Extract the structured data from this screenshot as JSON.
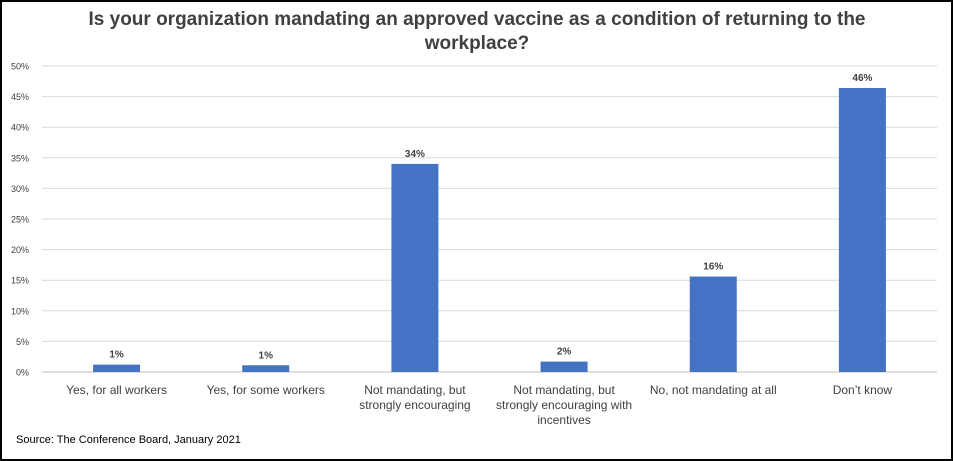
{
  "chart_data": {
    "type": "bar",
    "title": "Is your organization mandating an approved vaccine as a condition of returning to the workplace?",
    "xlabel": "",
    "ylabel": "",
    "categories": [
      [
        "Yes, for all workers"
      ],
      [
        "Yes, for some workers"
      ],
      [
        "Not mandating, but",
        "strongly encouraging"
      ],
      [
        "Not mandating, but",
        "strongly encouraging with",
        "incentives"
      ],
      [
        "No, not mandating at all"
      ],
      [
        "Don’t know"
      ]
    ],
    "values": [
      1.2,
      1.1,
      34,
      1.7,
      15.6,
      46.4
    ],
    "data_labels": [
      "1%",
      "1%",
      "34%",
      "2%",
      "16%",
      "46%"
    ],
    "ylim": [
      0,
      50
    ],
    "yticks": [
      0,
      5,
      10,
      15,
      20,
      25,
      30,
      35,
      40,
      45,
      50
    ],
    "ytick_labels": [
      "0%",
      "5%",
      "10%",
      "15%",
      "20%",
      "25%",
      "30%",
      "35%",
      "40%",
      "45%",
      "50%"
    ],
    "grid": true,
    "bar_color": "#4472C4",
    "gridline_color": "#D9D9D9",
    "label_color": "#404040"
  },
  "source": "Source: The Conference Board, January 2021"
}
